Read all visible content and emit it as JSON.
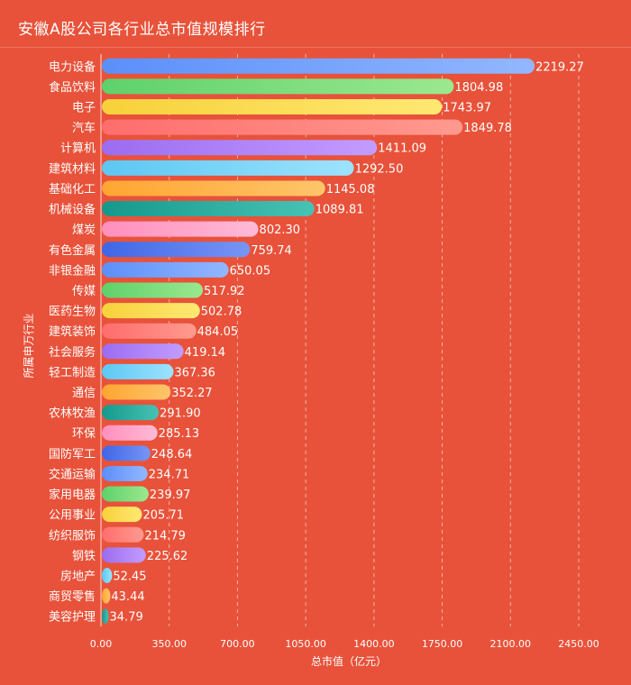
{
  "title": "安徽A股公司各行业总市值规模排行",
  "chart_data": {
    "type": "bar",
    "orientation": "horizontal",
    "title": "安徽A股公司各行业总市值规模排行",
    "xlabel": "总市值（亿元）",
    "ylabel": "所属申万行业",
    "xlim": [
      0,
      2450
    ],
    "xticks": [
      "0.00",
      "350.00",
      "700.00",
      "1050.00",
      "1400.00",
      "1750.00",
      "2100.00",
      "2450.00"
    ],
    "xtick_values": [
      0,
      350,
      700,
      1050,
      1400,
      1750,
      2100,
      2450
    ],
    "grid": "vertical-dashed",
    "categories": [
      "电力设备",
      "食品饮料",
      "电子",
      "汽车",
      "计算机",
      "建筑材料",
      "基础化工",
      "机械设备",
      "煤炭",
      "有色金属",
      "非银金融",
      "传媒",
      "医药生物",
      "建筑装饰",
      "社会服务",
      "轻工制造",
      "通信",
      "农林牧渔",
      "环保",
      "国防军工",
      "交通运输",
      "家用电器",
      "公用事业",
      "纺织服饰",
      "钢铁",
      "房地产",
      "商贸零售",
      "美容护理"
    ],
    "values": [
      2219.27,
      1804.98,
      1743.97,
      1849.78,
      1411.09,
      1292.5,
      1145.08,
      1089.81,
      802.3,
      759.74,
      650.05,
      517.92,
      502.78,
      484.05,
      419.14,
      367.36,
      352.27,
      291.9,
      285.13,
      248.64,
      234.71,
      239.97,
      205.71,
      214.79,
      225.62,
      52.45,
      43.44,
      34.79
    ],
    "labels": [
      "2219.27",
      "1804.98",
      "1743.97",
      "1849.78",
      "1411.09",
      "1292.50",
      "1145.08",
      "1089.81",
      "802.30",
      "759.74",
      "650.05",
      "517.92",
      "502.78",
      "484.05",
      "419.14",
      "367.36",
      "352.27",
      "291.90",
      "285.13",
      "248.64",
      "234.71",
      "239.97",
      "205.71",
      "214.79",
      "225.62",
      "52.45",
      "43.44",
      "34.79"
    ],
    "palette": [
      [
        "#5b8ff9",
        "#93b7ff"
      ],
      [
        "#5ed16a",
        "#9be88f"
      ],
      [
        "#f7d13a",
        "#ffe873"
      ],
      [
        "#ff6d6d",
        "#ff9a8f"
      ],
      [
        "#9b6cf0",
        "#c39cff"
      ],
      [
        "#5cc7f2",
        "#9de3ff"
      ],
      [
        "#ffa531",
        "#ffc56a"
      ],
      [
        "#14998c",
        "#47c2b4"
      ],
      [
        "#ff8fbd",
        "#ffbad6"
      ],
      [
        "#3e66e6",
        "#7895f5"
      ]
    ],
    "gridColor": "#ffffff",
    "axisColor": "#ffffff",
    "textColor": "#ffffff"
  }
}
